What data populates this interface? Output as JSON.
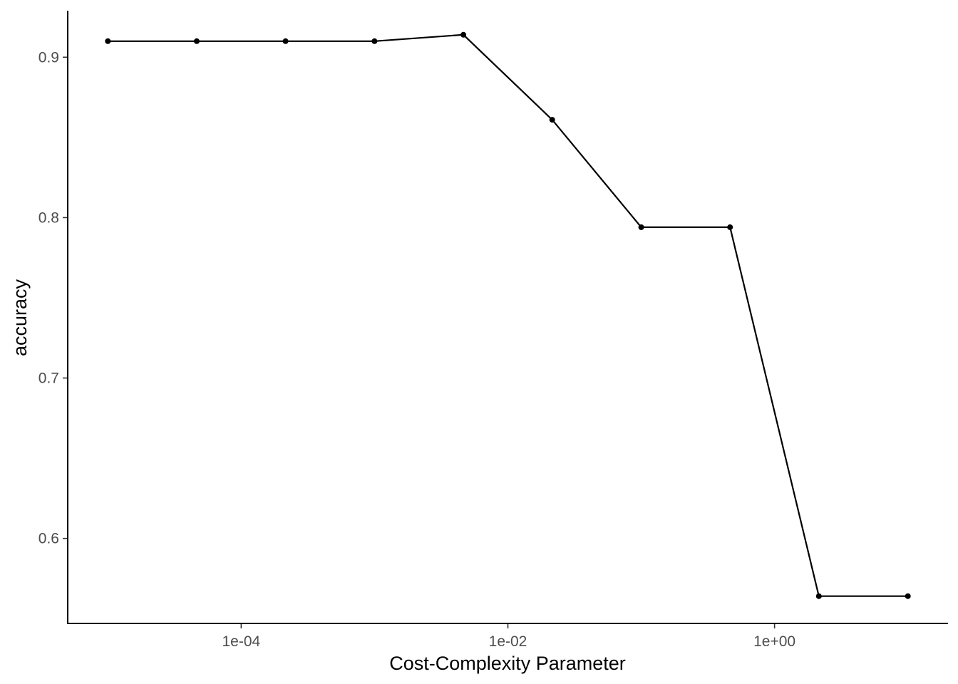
{
  "chart_data": {
    "type": "line",
    "title": "",
    "xlabel": "Cost-Complexity Parameter",
    "ylabel": "accuracy",
    "x_scale": "log10",
    "xlim": [
      5e-06,
      20
    ],
    "ylim": [
      0.547,
      0.929
    ],
    "x_ticks": [
      {
        "value": 0.0001,
        "label": "1e-04"
      },
      {
        "value": 0.01,
        "label": "1e-02"
      },
      {
        "value": 1,
        "label": "1e+00"
      }
    ],
    "y_ticks": [
      {
        "value": 0.6,
        "label": "0.6"
      },
      {
        "value": 0.7,
        "label": "0.7"
      },
      {
        "value": 0.8,
        "label": "0.8"
      },
      {
        "value": 0.9,
        "label": "0.9"
      }
    ],
    "grid": false,
    "legend": "none",
    "series": [
      {
        "color": "#000000",
        "points": [
          {
            "x": 1e-05,
            "y": 0.91
          },
          {
            "x": 4.64e-05,
            "y": 0.91
          },
          {
            "x": 0.000215,
            "y": 0.91
          },
          {
            "x": 0.001,
            "y": 0.91
          },
          {
            "x": 0.00464,
            "y": 0.914
          },
          {
            "x": 0.0215,
            "y": 0.861
          },
          {
            "x": 0.1,
            "y": 0.794
          },
          {
            "x": 0.464,
            "y": 0.794
          },
          {
            "x": 2.15,
            "y": 0.564
          },
          {
            "x": 10,
            "y": 0.564
          }
        ]
      }
    ]
  }
}
